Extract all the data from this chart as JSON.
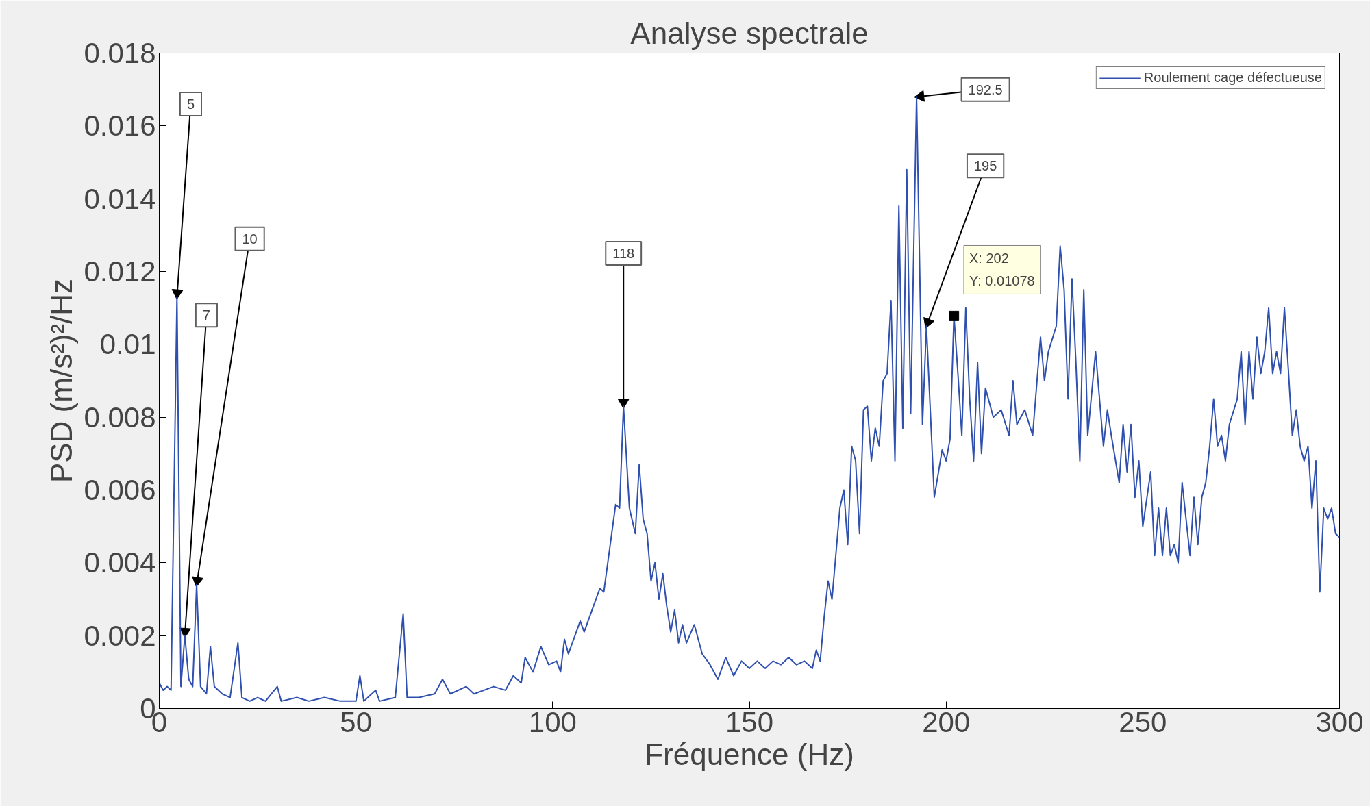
{
  "chart_data": {
    "type": "line",
    "title": "Analyse spectrale",
    "xlabel": "Fréquence (Hz)",
    "ylabel": "PSD (m/s²)²/Hz",
    "xlim": [
      0,
      300
    ],
    "xticks": [
      0,
      50,
      100,
      150,
      200,
      250,
      300
    ],
    "ylim": [
      0,
      0.018
    ],
    "yticks": [
      0,
      0.002,
      0.004,
      0.006,
      0.008,
      0.01,
      0.012,
      0.014,
      0.016,
      0.018
    ],
    "grid": false,
    "legend": "top right",
    "series": [
      {
        "name": "Roulement cage défectueuse",
        "color": "#3050b0",
        "x": [
          0,
          1,
          2,
          3,
          4.5,
          5.5,
          6.5,
          7.5,
          8.5,
          9.5,
          10.5,
          12,
          13,
          14,
          16,
          18,
          20,
          21,
          23,
          25,
          27,
          30,
          31,
          35,
          38,
          42,
          46,
          50,
          51,
          52,
          55,
          56,
          60,
          62,
          63,
          66,
          70,
          72,
          74,
          78,
          80,
          85,
          88,
          90,
          92,
          93,
          95,
          97,
          99,
          101,
          102,
          103,
          104,
          106,
          107,
          108,
          110,
          112,
          113,
          115,
          116,
          117,
          118,
          119.5,
          121,
          122,
          123,
          124,
          125,
          126,
          127,
          128,
          129,
          130,
          131,
          132,
          133,
          134,
          136,
          138,
          140,
          142,
          144,
          146,
          148,
          150,
          152,
          154,
          156,
          158,
          160,
          162,
          164,
          166,
          167,
          168,
          169,
          170,
          171,
          173,
          174,
          175,
          176,
          177,
          178,
          179,
          180,
          181,
          182,
          183,
          184,
          185,
          186,
          187,
          188,
          189,
          190,
          191,
          192.5,
          194,
          195,
          197,
          199,
          200,
          201,
          202,
          203,
          204,
          205,
          206,
          207,
          208,
          209,
          210,
          212,
          214,
          216,
          217,
          218,
          220,
          222,
          224,
          225,
          226,
          228,
          229,
          230,
          231,
          232,
          233,
          234,
          235,
          236,
          238,
          239,
          240,
          241,
          242,
          244,
          245,
          246,
          247,
          248,
          249,
          250,
          252,
          253,
          254,
          255,
          256,
          257,
          258,
          259,
          260,
          261,
          262,
          263,
          264,
          265,
          266,
          267,
          268,
          269,
          270,
          271,
          272,
          274,
          275,
          276,
          277,
          278,
          279,
          280,
          281,
          282,
          283,
          284,
          285,
          286,
          287,
          288,
          289,
          290,
          291,
          292,
          293,
          294,
          295,
          296,
          297,
          298,
          299,
          300
        ],
        "values": [
          0.0007,
          0.0005,
          0.0006,
          0.0005,
          0.0113,
          0.0006,
          0.002,
          0.0008,
          0.0006,
          0.0034,
          0.0006,
          0.0004,
          0.0017,
          0.0006,
          0.0004,
          0.0003,
          0.0018,
          0.0003,
          0.0002,
          0.0003,
          0.0002,
          0.0006,
          0.0002,
          0.0003,
          0.0002,
          0.0003,
          0.0002,
          0.0002,
          0.0009,
          0.0002,
          0.0005,
          0.0002,
          0.0003,
          0.0026,
          0.0003,
          0.0003,
          0.0004,
          0.0008,
          0.0004,
          0.0006,
          0.0004,
          0.0006,
          0.0005,
          0.0009,
          0.0007,
          0.0014,
          0.001,
          0.0017,
          0.0012,
          0.0013,
          0.001,
          0.0019,
          0.0015,
          0.0021,
          0.0024,
          0.0021,
          0.0027,
          0.0033,
          0.0032,
          0.0048,
          0.0056,
          0.0055,
          0.0083,
          0.0055,
          0.0048,
          0.0067,
          0.0052,
          0.0048,
          0.0035,
          0.004,
          0.003,
          0.0037,
          0.0028,
          0.0021,
          0.0027,
          0.0018,
          0.0023,
          0.0018,
          0.0023,
          0.0015,
          0.0012,
          0.0008,
          0.0014,
          0.0009,
          0.0013,
          0.0011,
          0.0013,
          0.0011,
          0.0013,
          0.0012,
          0.0014,
          0.0012,
          0.0013,
          0.0011,
          0.0016,
          0.0013,
          0.0025,
          0.0035,
          0.003,
          0.0055,
          0.006,
          0.0045,
          0.0072,
          0.0068,
          0.0048,
          0.0082,
          0.0083,
          0.0068,
          0.0077,
          0.0072,
          0.009,
          0.0092,
          0.0112,
          0.0068,
          0.0138,
          0.0077,
          0.0148,
          0.0081,
          0.0168,
          0.0078,
          0.0105,
          0.0058,
          0.0071,
          0.0068,
          0.0074,
          0.01078,
          0.0092,
          0.0075,
          0.011,
          0.0085,
          0.0068,
          0.0095,
          0.007,
          0.0088,
          0.008,
          0.0082,
          0.0075,
          0.009,
          0.0078,
          0.0082,
          0.0075,
          0.0102,
          0.009,
          0.0098,
          0.0105,
          0.0127,
          0.0115,
          0.0085,
          0.0118,
          0.0095,
          0.0068,
          0.0115,
          0.0075,
          0.0098,
          0.0085,
          0.0072,
          0.0082,
          0.0075,
          0.0062,
          0.0078,
          0.0065,
          0.0078,
          0.0058,
          0.0068,
          0.005,
          0.0065,
          0.0042,
          0.0055,
          0.0042,
          0.0055,
          0.0042,
          0.0045,
          0.004,
          0.0062,
          0.0052,
          0.0042,
          0.0058,
          0.0045,
          0.0058,
          0.0062,
          0.0072,
          0.0085,
          0.0072,
          0.0075,
          0.0068,
          0.0078,
          0.0085,
          0.0098,
          0.0078,
          0.0098,
          0.0085,
          0.0102,
          0.0092,
          0.0098,
          0.011,
          0.0092,
          0.0098,
          0.0092,
          0.011,
          0.0093,
          0.0075,
          0.0082,
          0.0072,
          0.0068,
          0.0072,
          0.0055,
          0.0068,
          0.0032,
          0.0055,
          0.0052,
          0.0055,
          0.0048,
          0.0047
        ]
      }
    ],
    "annotations": [
      {
        "text": "5",
        "x": 4.5,
        "y": 0.0113
      },
      {
        "text": "7",
        "x": 6.5,
        "y": 0.002
      },
      {
        "text": "10",
        "x": 9.5,
        "y": 0.0034
      },
      {
        "text": "118",
        "x": 118,
        "y": 0.0083
      },
      {
        "text": "192.5",
        "x": 192.5,
        "y": 0.0168
      },
      {
        "text": "195",
        "x": 195,
        "y": 0.0105
      },
      {
        "text": "X: 202\nY: 0.01078",
        "x": 202,
        "y": 0.01078
      }
    ]
  }
}
